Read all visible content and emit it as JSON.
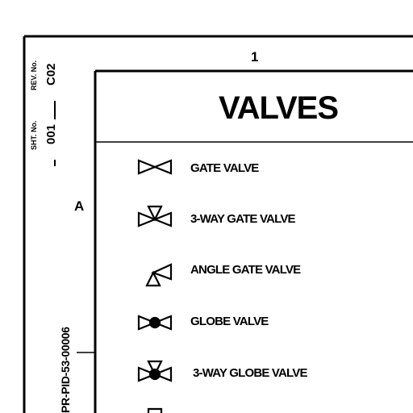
{
  "sheet": {
    "zone_number": "1",
    "zone_letter": "A"
  },
  "title_block": {
    "rev_label": "REV. No.",
    "rev_value": "C02",
    "sheet_label": "SHT. No.",
    "sheet_value": "001",
    "document_number": "PR-PID-53-00006"
  },
  "legend": {
    "title": "VALVES",
    "items": [
      {
        "symbol": "gate-valve-icon",
        "label": "GATE VALVE"
      },
      {
        "symbol": "three-way-gate-valve-icon",
        "label": "3-WAY GATE VALVE"
      },
      {
        "symbol": "angle-gate-valve-icon",
        "label": "ANGLE GATE VALVE"
      },
      {
        "symbol": "globe-valve-icon",
        "label": "GLOBE VALVE"
      },
      {
        "symbol": "three-way-globe-valve-icon",
        "label": "3-WAY GLOBE VALVE"
      }
    ]
  }
}
